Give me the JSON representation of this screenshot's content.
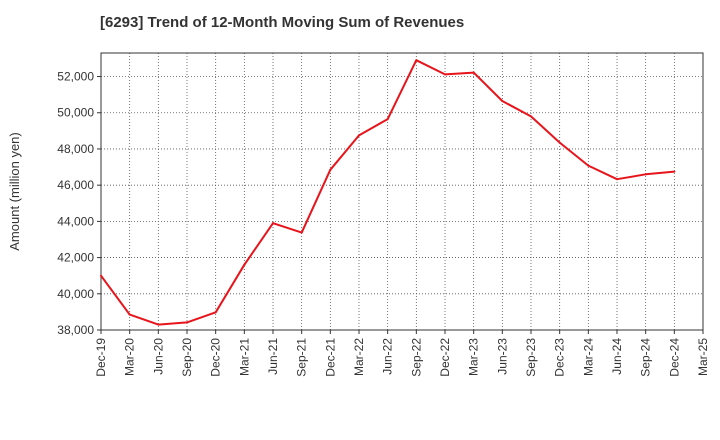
{
  "chart_data": {
    "type": "line",
    "title": "[6293]  Trend of 12-Month Moving Sum of Revenues",
    "xlabel": "",
    "ylabel": "Amount (million yen)",
    "ylim": [
      38000,
      53300
    ],
    "yticks": [
      38000,
      40000,
      42000,
      44000,
      46000,
      48000,
      50000,
      52000
    ],
    "ytick_labels": [
      "38,000",
      "40,000",
      "42,000",
      "44,000",
      "46,000",
      "48,000",
      "50,000",
      "52,000"
    ],
    "categories": [
      "Dec-19",
      "Mar-20",
      "Jun-20",
      "Sep-20",
      "Dec-20",
      "Mar-21",
      "Jun-21",
      "Sep-21",
      "Dec-21",
      "Mar-22",
      "Jun-22",
      "Sep-22",
      "Dec-22",
      "Mar-23",
      "Jun-23",
      "Sep-23",
      "Dec-23",
      "Mar-24",
      "Jun-24",
      "Sep-24",
      "Dec-24",
      "Mar-25"
    ],
    "grid": true,
    "series": [
      {
        "name": "",
        "color": "#e8141c",
        "values": [
          41000,
          38850,
          38300,
          38420,
          38980,
          41600,
          43900,
          43380,
          46850,
          48750,
          49650,
          52900,
          52120,
          52220,
          50650,
          49800,
          48350,
          47080,
          46330,
          46600,
          46750,
          null
        ]
      }
    ]
  }
}
